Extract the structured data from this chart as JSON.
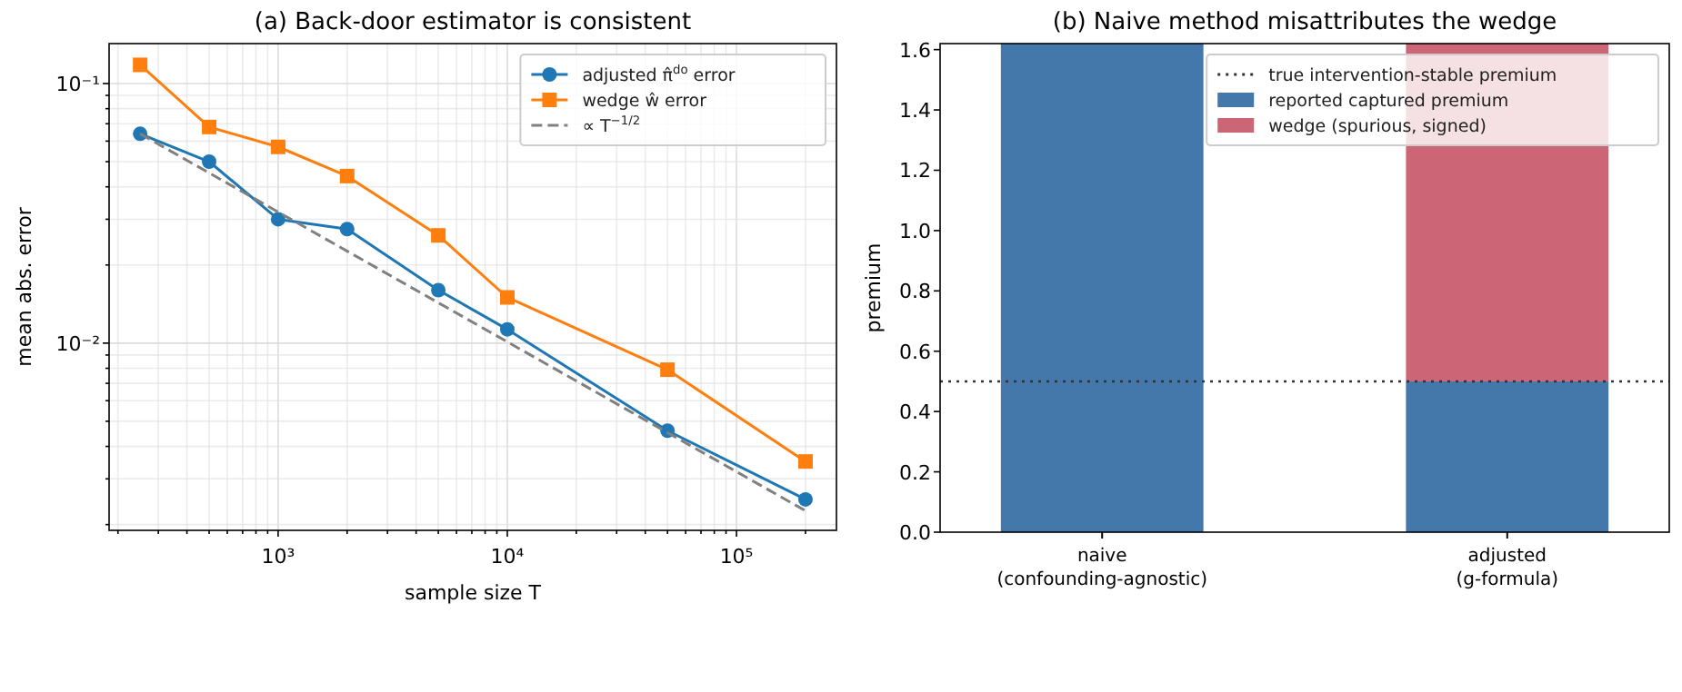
{
  "chart_data": [
    {
      "type": "line",
      "title": "(a) Back-door estimator is consistent",
      "xlabel": "sample size T",
      "ylabel": "mean abs. error",
      "log": "xy",
      "grid": true,
      "legend": "top right",
      "xlim": [
        183,
        273000
      ],
      "ylim": [
        0.0019,
        0.1425
      ],
      "xticks": [
        {
          "value": 200,
          "label": null
        },
        {
          "value": 300,
          "label": null
        },
        {
          "value": 400,
          "label": null
        },
        {
          "value": 500,
          "label": null
        },
        {
          "value": 600,
          "label": null
        },
        {
          "value": 700,
          "label": null
        },
        {
          "value": 800,
          "label": null
        },
        {
          "value": 900,
          "label": null
        },
        {
          "value": 1000,
          "label": "10³"
        },
        {
          "value": 2000,
          "label": null
        },
        {
          "value": 3000,
          "label": null
        },
        {
          "value": 4000,
          "label": null
        },
        {
          "value": 5000,
          "label": null
        },
        {
          "value": 6000,
          "label": null
        },
        {
          "value": 7000,
          "label": null
        },
        {
          "value": 8000,
          "label": null
        },
        {
          "value": 9000,
          "label": null
        },
        {
          "value": 10000,
          "label": "10⁴"
        },
        {
          "value": 20000,
          "label": null
        },
        {
          "value": 30000,
          "label": null
        },
        {
          "value": 40000,
          "label": null
        },
        {
          "value": 50000,
          "label": null
        },
        {
          "value": 60000,
          "label": null
        },
        {
          "value": 70000,
          "label": null
        },
        {
          "value": 80000,
          "label": null
        },
        {
          "value": 90000,
          "label": null
        },
        {
          "value": 100000,
          "label": "10⁵"
        },
        {
          "value": 200000,
          "label": null
        }
      ],
      "yticks": [
        {
          "value": 0.002,
          "label": null
        },
        {
          "value": 0.003,
          "label": null
        },
        {
          "value": 0.004,
          "label": null
        },
        {
          "value": 0.005,
          "label": null
        },
        {
          "value": 0.006,
          "label": null
        },
        {
          "value": 0.007,
          "label": null
        },
        {
          "value": 0.008,
          "label": null
        },
        {
          "value": 0.009,
          "label": null
        },
        {
          "value": 0.01,
          "label": "10⁻²"
        },
        {
          "value": 0.02,
          "label": null
        },
        {
          "value": 0.03,
          "label": null
        },
        {
          "value": 0.04,
          "label": null
        },
        {
          "value": 0.05,
          "label": null
        },
        {
          "value": 0.06,
          "label": null
        },
        {
          "value": 0.07,
          "label": null
        },
        {
          "value": 0.08,
          "label": null
        },
        {
          "value": 0.09,
          "label": null
        },
        {
          "value": 0.1,
          "label": "10⁻¹"
        }
      ],
      "x": [
        250,
        500,
        1000,
        2000,
        5000,
        10000,
        50000,
        200000
      ],
      "series": [
        {
          "name": "adjusted π̂$^{do}$ error",
          "color": "#1f77b4",
          "marker": "circle",
          "line_style": "solid",
          "values": [
            0.064,
            0.05,
            0.03,
            0.0275,
            0.016,
            0.0113,
            0.0046,
            0.0025
          ]
        },
        {
          "name": "wedge ŵ error",
          "color": "#ff7f0e",
          "marker": "square",
          "line_style": "solid",
          "values": [
            0.118,
            0.068,
            0.057,
            0.044,
            0.026,
            0.015,
            0.0079,
            0.0035
          ]
        },
        {
          "name": "∝ T$^{−1/2}$",
          "color": "#808080",
          "marker": "none",
          "line_style": "dashed",
          "x": [
            250,
            200000
          ],
          "values": [
            0.064,
            0.00226
          ]
        }
      ]
    },
    {
      "type": "bar",
      "title": "(b) Naive method misattributes the wedge",
      "ylabel": "premium",
      "stacked": true,
      "legend": "top right",
      "grid": false,
      "categories": [
        "naive\n(confounding-agnostic)",
        "adjusted\n(g-formula)"
      ],
      "ylim": [
        0,
        1.62
      ],
      "yticks": [
        {
          "value": 0,
          "label": "0.0"
        },
        0.2,
        0.4,
        0.6,
        0.8,
        {
          "value": 1,
          "label": "1.0"
        },
        1.2,
        1.4,
        1.6
      ],
      "series": [
        {
          "name": "reported captured premium",
          "color": "#4477aa",
          "values": [
            1.62,
            0.5
          ]
        },
        {
          "name": "wedge (spurious, signed)",
          "color": "#cc6677",
          "values": [
            null,
            1.12
          ]
        }
      ],
      "ref_lines": [
        {
          "axis": "y",
          "value": 0.5,
          "label": "true intervention-stable premium",
          "color": "#333333",
          "line_style": "dotted"
        }
      ]
    }
  ]
}
